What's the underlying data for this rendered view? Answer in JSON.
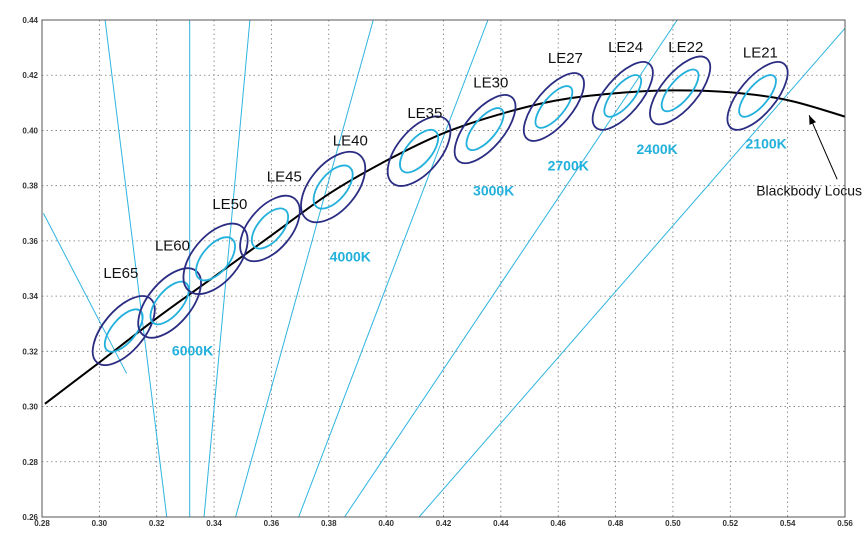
{
  "chart_data": {
    "type": "scatter",
    "xlim": [
      0.28,
      0.56
    ],
    "ylim": [
      0.26,
      0.44
    ],
    "x_ticks": [
      "0.28",
      "0.30",
      "0.32",
      "0.34",
      "0.36",
      "0.38",
      "0.40",
      "0.42",
      "0.44",
      "0.46",
      "0.48",
      "0.50",
      "0.52",
      "0.54",
      "0.56"
    ],
    "y_ticks": [
      "0.26",
      "0.28",
      "0.30",
      "0.32",
      "0.34",
      "0.36",
      "0.38",
      "0.40",
      "0.42",
      "0.44"
    ],
    "grid": true,
    "colors": {
      "ellipse_outer": "#2a2d82",
      "ellipse_inner": "#22b0dc",
      "isotherm": "#2fb4e0",
      "locus": "#000000",
      "cct_label": "#22b0dc"
    },
    "blackbody_locus": {
      "label": "Blackbody Locus",
      "points": [
        [
          0.281,
          0.301
        ],
        [
          0.3,
          0.316
        ],
        [
          0.32,
          0.332
        ],
        [
          0.34,
          0.347
        ],
        [
          0.36,
          0.362
        ],
        [
          0.38,
          0.377
        ],
        [
          0.4,
          0.389
        ],
        [
          0.42,
          0.399
        ],
        [
          0.44,
          0.406
        ],
        [
          0.46,
          0.411
        ],
        [
          0.48,
          0.4135
        ],
        [
          0.5,
          0.4145
        ],
        [
          0.52,
          0.4138
        ],
        [
          0.54,
          0.411
        ],
        [
          0.56,
          0.405
        ]
      ]
    },
    "ellipses": [
      {
        "label": "LE65",
        "x": 0.3085,
        "y": 0.3275,
        "rx": 0.0145,
        "ry": 0.012,
        "label_x": 0.3075,
        "label_y": 0.3465
      },
      {
        "label": "LE60",
        "x": 0.3245,
        "y": 0.3375,
        "rx": 0.0145,
        "ry": 0.0125,
        "label_x": 0.3255,
        "label_y": 0.3565
      },
      {
        "label": "LE50",
        "x": 0.3405,
        "y": 0.3535,
        "rx": 0.0145,
        "ry": 0.0135,
        "label_x": 0.3455,
        "label_y": 0.3715
      },
      {
        "label": "LE45",
        "x": 0.3595,
        "y": 0.3645,
        "rx": 0.0135,
        "ry": 0.0125,
        "label_x": 0.3645,
        "label_y": 0.3815
      },
      {
        "label": "LE40",
        "x": 0.3815,
        "y": 0.3795,
        "rx": 0.0145,
        "ry": 0.0135,
        "label_x": 0.3875,
        "label_y": 0.3945
      },
      {
        "label": "LE35",
        "x": 0.4115,
        "y": 0.3925,
        "rx": 0.0145,
        "ry": 0.0125,
        "label_x": 0.4135,
        "label_y": 0.4045
      },
      {
        "label": "LE30",
        "x": 0.4345,
        "y": 0.4005,
        "rx": 0.0145,
        "ry": 0.011,
        "label_x": 0.4365,
        "label_y": 0.4155
      },
      {
        "label": "LE27",
        "x": 0.4585,
        "y": 0.4085,
        "rx": 0.0145,
        "ry": 0.0105,
        "label_x": 0.4625,
        "label_y": 0.4245
      },
      {
        "label": "LE24",
        "x": 0.4825,
        "y": 0.4125,
        "rx": 0.0145,
        "ry": 0.0105,
        "label_x": 0.4835,
        "label_y": 0.4285
      },
      {
        "label": "LE22",
        "x": 0.5025,
        "y": 0.4145,
        "rx": 0.0145,
        "ry": 0.0105,
        "label_x": 0.5045,
        "label_y": 0.4285
      },
      {
        "label": "LE21",
        "x": 0.5295,
        "y": 0.4125,
        "rx": 0.0145,
        "ry": 0.0105,
        "label_x": 0.5305,
        "label_y": 0.4265
      }
    ],
    "isotherms": [
      {
        "points": [
          [
            0.302,
            0.44
          ],
          [
            0.3235,
            0.26
          ]
        ]
      },
      {
        "points": [
          [
            0.3315,
            0.44
          ],
          [
            0.3315,
            0.26
          ]
        ]
      },
      {
        "points": [
          [
            0.3525,
            0.44
          ],
          [
            0.3365,
            0.26
          ]
        ]
      },
      {
        "points": [
          [
            0.3955,
            0.44
          ],
          [
            0.3475,
            0.26
          ]
        ]
      },
      {
        "points": [
          [
            0.4355,
            0.44
          ],
          [
            0.3695,
            0.26
          ]
        ]
      },
      {
        "points": [
          [
            0.5015,
            0.44
          ],
          [
            0.3855,
            0.26
          ]
        ]
      },
      {
        "points": [
          [
            0.5625,
            0.44
          ],
          [
            0.4115,
            0.26
          ]
        ]
      },
      {
        "points": [
          [
            0.2805,
            0.37
          ],
          [
            0.3095,
            0.312
          ]
        ]
      }
    ],
    "cct_labels": [
      {
        "text": "6000K",
        "x": 0.3325,
        "y": 0.3185
      },
      {
        "text": "4000K",
        "x": 0.3875,
        "y": 0.3525
      },
      {
        "text": "3000K",
        "x": 0.4375,
        "y": 0.3765
      },
      {
        "text": "2700K",
        "x": 0.4635,
        "y": 0.3855
      },
      {
        "text": "2400K",
        "x": 0.4945,
        "y": 0.3915
      },
      {
        "text": "2100K",
        "x": 0.5325,
        "y": 0.3935
      }
    ],
    "annotation": {
      "text": "Blackbody Locus",
      "text_x": 0.5475,
      "text_y": 0.3765,
      "arrow_to": [
        0.5475,
        0.4055
      ]
    }
  }
}
